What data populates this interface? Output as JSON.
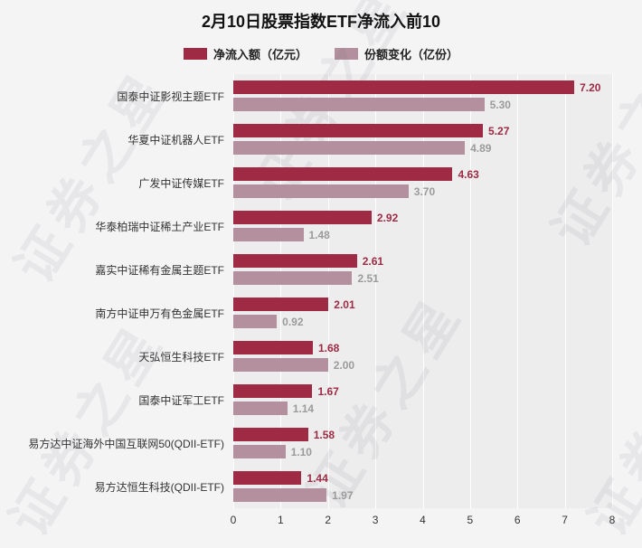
{
  "title": "2月10日股票指数ETF净流入前10",
  "watermark": "证券之星",
  "colors": {
    "primary": "#9e2a44",
    "secondary": "#b48f9d",
    "primary_label": "#9e2a44",
    "secondary_label": "#9b9b9b",
    "plot_bg": "#ededee",
    "page_bg": "#f4f4f5"
  },
  "legend": {
    "items": [
      {
        "label": "净流入额（亿元）",
        "color": "#9e2a44"
      },
      {
        "label": "份额变化（亿份）",
        "color": "#b48f9d"
      }
    ]
  },
  "chart_data": {
    "type": "bar",
    "orientation": "horizontal",
    "title": "2月10日股票指数ETF净流入前10",
    "categories": [
      "国泰中证影视主题ETF",
      "华夏中证机器人ETF",
      "广发中证传媒ETF",
      "华泰柏瑞中证稀土产业ETF",
      "嘉实中证稀有金属主题ETF",
      "南方中证申万有色金属ETF",
      "天弘恒生科技ETF",
      "国泰中证军工ETF",
      "易方达中证海外中国互联网50(QDII-ETF)",
      "易方达恒生科技(QDII-ETF)"
    ],
    "series": [
      {
        "name": "净流入额（亿元）",
        "values": [
          7.2,
          5.27,
          4.63,
          2.92,
          2.61,
          2.01,
          1.68,
          1.67,
          1.58,
          1.44
        ]
      },
      {
        "name": "份额变化（亿份）",
        "values": [
          5.3,
          4.89,
          3.7,
          1.48,
          2.51,
          0.92,
          2.0,
          1.14,
          1.1,
          1.97
        ]
      }
    ],
    "xlabel": "",
    "ylabel": "",
    "xlim": [
      0,
      8
    ],
    "xticks": [
      0,
      1,
      2,
      3,
      4,
      5,
      6,
      7,
      8
    ],
    "grid": true,
    "legend_position": "top"
  }
}
